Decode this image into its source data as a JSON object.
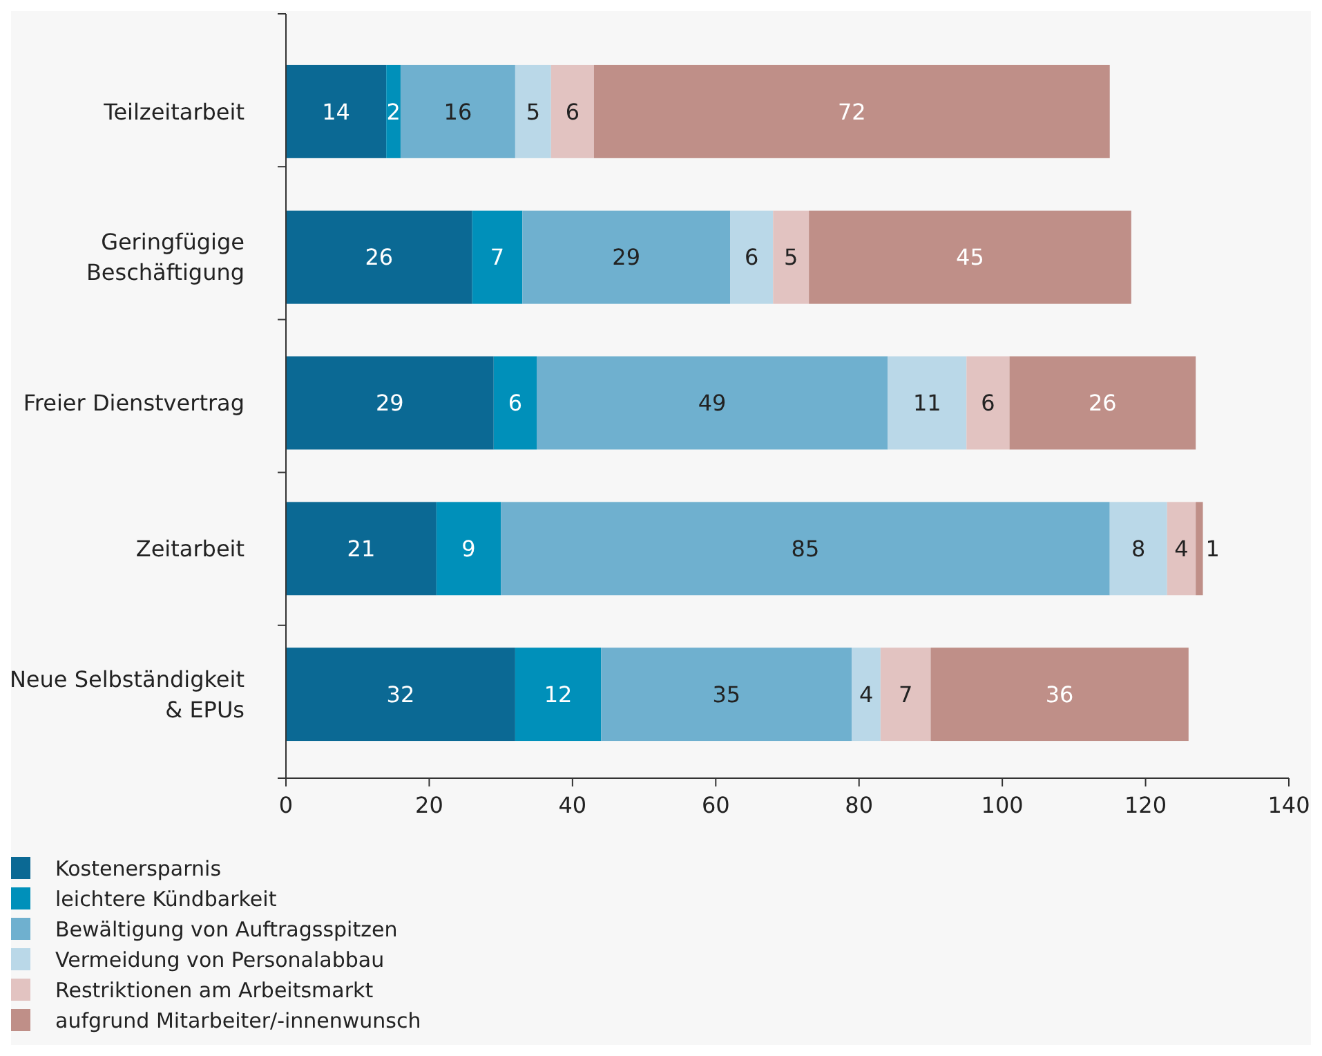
{
  "chart_data": {
    "type": "bar",
    "orientation": "horizontal",
    "stacked": true,
    "data_labels": true,
    "legend": "bottom",
    "grid": false,
    "categories": [
      "Teilzeitarbeit",
      "Geringfügige Beschäftigung",
      "Freier Dienstvertrag",
      "Zeitarbeit",
      "Neue Selbständigkeit & EPUs"
    ],
    "xlim": [
      0,
      140
    ],
    "xticks": [
      0,
      20,
      40,
      60,
      80,
      100,
      120,
      140
    ],
    "series": [
      {
        "name": "Kostenersparnis",
        "color": "#0b6994",
        "values": [
          14,
          26,
          29,
          21,
          32
        ]
      },
      {
        "name": "leichtere Kündbarkeit",
        "color": "#0090ba",
        "values": [
          2,
          7,
          6,
          9,
          12
        ]
      },
      {
        "name": "Bewältigung von Auftragsspitzen",
        "color": "#6fb0cf",
        "values": [
          16,
          29,
          49,
          85,
          35
        ]
      },
      {
        "name": "Vermeidung von Personalabbau",
        "color": "#bad8e8",
        "values": [
          5,
          6,
          11,
          8,
          4
        ]
      },
      {
        "name": "Restriktionen am Arbeitsmarkt",
        "color": "#e2c3c1",
        "values": [
          6,
          5,
          6,
          4,
          7
        ]
      },
      {
        "name": "aufgrund Mitarbeiter/-innenwunsch",
        "color": "#bf8f88",
        "values": [
          72,
          45,
          26,
          1,
          36
        ]
      }
    ]
  }
}
